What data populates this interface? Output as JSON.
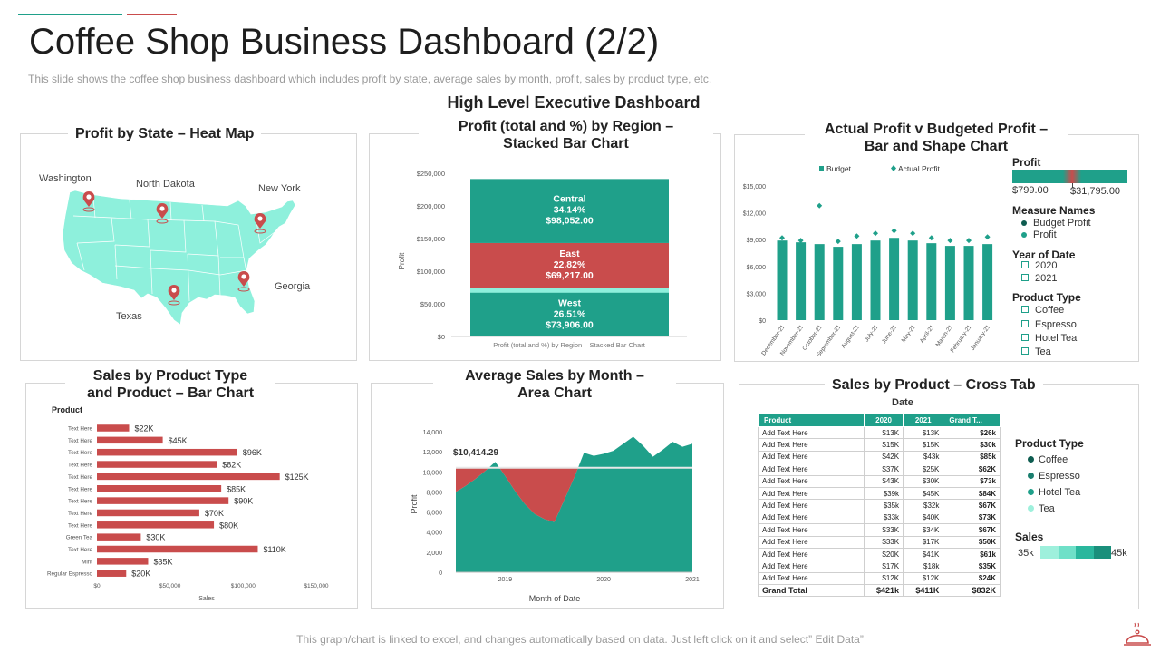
{
  "header": {
    "title": "Coffee Shop Business Dashboard (2/2)",
    "subtitle": "This slide shows the coffee  shop business dashboard which includes profit by state, average  sales by month, profit, sales by product type, etc.",
    "section_title": "High Level Executive Dashboard",
    "accent_colors": [
      "#1fa08a",
      "#c94c4c"
    ]
  },
  "footer": {
    "note": "This graph/chart is linked to excel, and changes automatically based on data. Just left click on it and select” Edit Data”"
  },
  "heatmap": {
    "title": "Profit by State – Heat Map",
    "states": [
      "Washington",
      "North Dakota",
      "New York",
      "Georgia",
      "Texas"
    ],
    "icon": "map-pin-icon"
  },
  "stacked": {
    "title_line1": "Profit (total and %) by Region –",
    "title_line2": "Stacked Bar Chart",
    "ylabel": "Profit",
    "caption": "Profit (total and %) by Region – Stacked Bar Chart",
    "segments": [
      {
        "region": "Central",
        "pct": "34.14%",
        "value": "$98,052.00"
      },
      {
        "region": "East",
        "pct": "22.82%",
        "value": "$69,217.00"
      },
      {
        "region": "West",
        "pct": "26.51%",
        "value": "$73,906.00"
      }
    ]
  },
  "budget": {
    "title_line1": "Actual Profit v Budgeted Profit –",
    "title_line2": "Bar and Shape Chart",
    "legend_budget": "Budget",
    "legend_actual": "Actual Profit",
    "profit_label": "Profit",
    "profit_min": "$799.00",
    "profit_max": "$31,795.00",
    "measure_title": "Measure Names",
    "measures": [
      "Budget Profit",
      "Profit"
    ],
    "year_title": "Year of Date",
    "years": [
      "2020",
      "2021"
    ],
    "ptype_title": "Product Type",
    "ptypes": [
      "Coffee",
      "Espresso",
      "Hotel Tea",
      "Tea"
    ]
  },
  "productbar": {
    "title_line1": "Sales by Product Type",
    "title_line2": "and Product – Bar Chart",
    "header": "Product",
    "xlabel": "Sales"
  },
  "area": {
    "title_line1": "Average Sales by Month –",
    "title_line2": "Area Chart",
    "ylabel": "Profit",
    "xlabel": "Month of Date",
    "ref_label": "$10,414.29"
  },
  "crosstab": {
    "title": "Sales by Product – Cross Tab",
    "date_label": "Date",
    "columns": [
      "Product",
      "2020",
      "2021",
      "Grand T..."
    ],
    "rows": [
      [
        "Add Text Here",
        "$13K",
        "$13K",
        "$26k"
      ],
      [
        "Add Text Here",
        "$15K",
        "$15K",
        "$30k"
      ],
      [
        "Add Text Here",
        "$42K",
        "$43k",
        "$85k"
      ],
      [
        "Add Text Here",
        "$37K",
        "$25K",
        "$62K"
      ],
      [
        "Add Text Here",
        "$43K",
        "$30K",
        "$73k"
      ],
      [
        "Add Text Here",
        "$39k",
        "$45K",
        "$84K"
      ],
      [
        "Add Text Here",
        "$35k",
        "$32k",
        "$67K"
      ],
      [
        "Add Text Here",
        "$33k",
        "$40K",
        "$73K"
      ],
      [
        "Add Text Here",
        "$33K",
        "$34K",
        "$67K"
      ],
      [
        "Add Text Here",
        "$33K",
        "$17K",
        "$50K"
      ],
      [
        "Add Text Here",
        "$20K",
        "$41K",
        "$61k"
      ],
      [
        "Add Text Here",
        "$17K",
        "$18k",
        "$35K"
      ],
      [
        "Add Text Here",
        "$12K",
        "$12K",
        "$24K"
      ]
    ],
    "total": [
      "Grand Total",
      "$421k",
      "$411K",
      "$832K"
    ],
    "ptype_title": "Product Type",
    "ptypes": [
      "Coffee",
      "Espresso",
      "Hotel Tea",
      "Tea"
    ],
    "ptype_colors": [
      "#0e5c50",
      "#1a7f6f",
      "#1fa08a",
      "#9ef0dc"
    ],
    "sales_title": "Sales",
    "sales_min": "35k",
    "sales_max": "45k"
  },
  "chart_data": [
    {
      "type": "bar",
      "id": "stacked-region",
      "title": "Profit (total and %) by Region – Stacked Bar Chart",
      "ylabel": "Profit",
      "yticks": [
        "$0",
        "$50,000",
        "$100,000",
        "$150,000",
        "$200,000",
        "$250,000"
      ],
      "ylim": [
        0,
        250000
      ],
      "stacks": [
        {
          "name": "West",
          "value": 73906,
          "color": "#1fa08a"
        },
        {
          "name": "East",
          "value": 69217,
          "color": "#c94c4c"
        },
        {
          "name": "Central",
          "value": 98052,
          "color": "#1fa08a"
        }
      ]
    },
    {
      "type": "bar",
      "id": "budget-vs-actual",
      "title": "Actual Profit v Budgeted Profit – Bar and Shape Chart",
      "categories": [
        "December-21",
        "November-21",
        "October-21",
        "September-21",
        "August-21",
        "July-21",
        "June-21",
        "May-21",
        "April-21",
        "March-21",
        "February-21",
        "January-21"
      ],
      "series": [
        {
          "name": "Budget",
          "values": [
            8900,
            8700,
            8500,
            8200,
            8500,
            8900,
            9200,
            8900,
            8600,
            8300,
            8300,
            8500
          ]
        },
        {
          "name": "Actual Profit",
          "values": [
            9200,
            8900,
            12800,
            8800,
            9400,
            9700,
            10000,
            9700,
            9200,
            8900,
            8900,
            9300
          ]
        }
      ],
      "yticks": [
        "$0",
        "$3,000",
        "$6,000",
        "$9,000",
        "$12,000",
        "$15,000"
      ],
      "ylim": [
        0,
        15000
      ]
    },
    {
      "type": "bar",
      "id": "sales-by-product",
      "title": "Sales by Product Type and Product – Bar Chart",
      "orientation": "horizontal",
      "categories": [
        "Text Here",
        "Text Here",
        "Text Here",
        "Text Here",
        "Text Here",
        "Text Here",
        "Text Here",
        "Text Here",
        "Text Here",
        "Green Tea",
        "Text Here",
        "Mint",
        "Regular Espresso"
      ],
      "values": [
        22,
        45,
        96,
        82,
        125,
        85,
        90,
        70,
        80,
        30,
        110,
        35,
        20
      ],
      "labels": [
        "$22K",
        "$45K",
        "$96K",
        "$82K",
        "$125K",
        "$85K",
        "$90K",
        "$70K",
        "$80K",
        "$30K",
        "$110K",
        "$35K",
        "$20K"
      ],
      "xticks": [
        "$0",
        "$50,000",
        "$100,000",
        "$150,000"
      ],
      "xlim": [
        0,
        150
      ],
      "xlabel": "Sales",
      "color": "#c94c4c"
    },
    {
      "type": "area",
      "id": "avg-sales-month",
      "title": "Average Sales by Month – Area Chart",
      "x": [
        0,
        0.5,
        1,
        1.5,
        2,
        2.5,
        3,
        3.5,
        4,
        4.5,
        5,
        5.5,
        6,
        6.5,
        7,
        7.5,
        8,
        8.5,
        9,
        9.5,
        10,
        10.5,
        11,
        11.5,
        12
      ],
      "values": [
        8000,
        8600,
        9300,
        10100,
        11000,
        9600,
        8100,
        6800,
        5800,
        5300,
        5000,
        7200,
        9400,
        11900,
        11600,
        11800,
        12100,
        12800,
        13500,
        12600,
        11500,
        12200,
        13000,
        12500,
        12800
      ],
      "reference": 10414.29,
      "yticks": [
        "0",
        "2,000",
        "4,000",
        "6,000",
        "8,000",
        "10,000",
        "12,000",
        "14,000"
      ],
      "ylim": [
        0,
        14000
      ],
      "xticks": [
        "2019",
        "2020",
        "2021"
      ],
      "xtick_positions": [
        2.5,
        7.5,
        12
      ],
      "ylabel": "Profit",
      "xlabel": "Month of Date"
    }
  ]
}
